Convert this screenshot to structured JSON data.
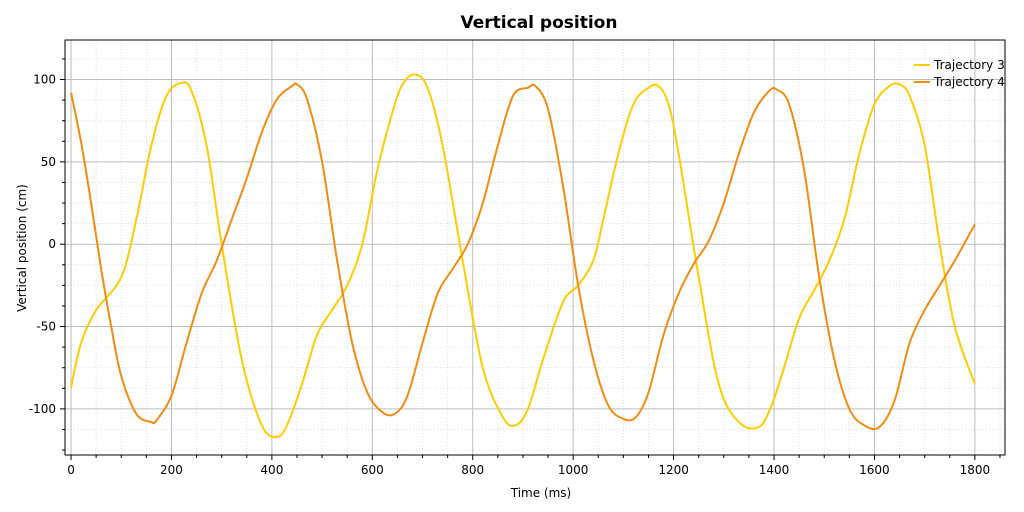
{
  "chart_data": {
    "type": "line",
    "title": "Vertical position",
    "xlabel": "Time (ms)",
    "ylabel": "Vertical position (cm)",
    "xlim": [
      -12,
      1860
    ],
    "ylim": [
      -128,
      124
    ],
    "x_ticks": [
      0,
      200,
      400,
      600,
      800,
      1000,
      1200,
      1400,
      1600,
      1800
    ],
    "y_ticks": [
      -100,
      -50,
      0,
      50,
      100
    ],
    "grid": true,
    "legend_position": "top-right",
    "series": [
      {
        "name": "Trajectory 3",
        "color": "#ffcc00",
        "x": [
          0,
          20,
          50,
          100,
          130,
          160,
          190,
          220,
          240,
          270,
          300,
          340,
          380,
          410,
          430,
          460,
          490,
          520,
          550,
          580,
          610,
          640,
          660,
          685,
          710,
          740,
          780,
          820,
          860,
          885,
          910,
          940,
          980,
          1010,
          1040,
          1060,
          1090,
          1120,
          1150,
          1170,
          1190,
          1210,
          1250,
          1290,
          1330,
          1370,
          1395,
          1420,
          1450,
          1480,
          1510,
          1540,
          1570,
          1600,
          1630,
          1650,
          1670,
          1700,
          1730,
          1760,
          1800
        ],
        "values": [
          -87,
          -60,
          -40,
          -20,
          15,
          60,
          90,
          98,
          93,
          60,
          0,
          -70,
          -110,
          -117,
          -110,
          -85,
          -55,
          -40,
          -25,
          0,
          45,
          80,
          97,
          103,
          95,
          60,
          -10,
          -75,
          -105,
          -110,
          -100,
          -70,
          -35,
          -25,
          -10,
          15,
          55,
          85,
          95,
          96,
          85,
          55,
          -20,
          -85,
          -108,
          -111,
          -98,
          -75,
          -45,
          -28,
          -10,
          15,
          55,
          85,
          96,
          97,
          90,
          60,
          0,
          -50,
          -85
        ]
      },
      {
        "name": "Trajectory 4",
        "color": "#f08c14",
        "x": [
          0,
          20,
          40,
          60,
          80,
          100,
          130,
          160,
          170,
          200,
          230,
          260,
          290,
          320,
          350,
          380,
          410,
          440,
          450,
          470,
          500,
          530,
          560,
          590,
          620,
          645,
          670,
          700,
          730,
          760,
          790,
          820,
          850,
          880,
          910,
          925,
          950,
          980,
          1010,
          1040,
          1070,
          1100,
          1125,
          1150,
          1180,
          1210,
          1240,
          1270,
          1300,
          1330,
          1360,
          1390,
          1405,
          1430,
          1460,
          1490,
          1520,
          1550,
          1580,
          1610,
          1640,
          1670,
          1700,
          1730,
          1760,
          1800
        ],
        "values": [
          92,
          62,
          25,
          -15,
          -50,
          -80,
          -103,
          -108,
          -107,
          -92,
          -60,
          -30,
          -10,
          15,
          40,
          68,
          88,
          96,
          97,
          88,
          50,
          -10,
          -60,
          -90,
          -102,
          -103,
          -92,
          -60,
          -30,
          -15,
          0,
          25,
          60,
          90,
          95,
          96,
          82,
          35,
          -25,
          -70,
          -98,
          -106,
          -105,
          -90,
          -55,
          -30,
          -12,
          2,
          25,
          55,
          80,
          93,
          94,
          85,
          45,
          -20,
          -70,
          -100,
          -110,
          -111,
          -95,
          -60,
          -40,
          -25,
          -10,
          12
        ]
      }
    ]
  }
}
